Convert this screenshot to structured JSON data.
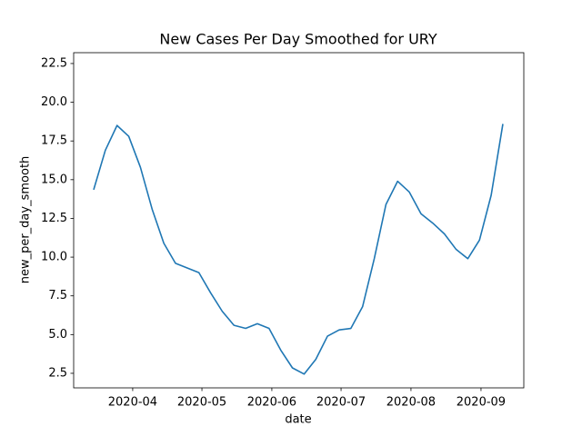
{
  "chart_data": {
    "type": "line",
    "title": "New Cases Per Day Smoothed for URY",
    "x_label": "date",
    "y_label": "new_per_day_smooth",
    "series": [
      {
        "name": "new_per_day_smooth",
        "color": "#1f77b4",
        "values": [
          14.35,
          16.9,
          18.5,
          17.8,
          15.8,
          13.1,
          10.9,
          9.6,
          9.3,
          9.0,
          7.7,
          6.5,
          5.6,
          5.4,
          5.7,
          5.4,
          4.0,
          2.85,
          2.45,
          3.4,
          4.9,
          5.3,
          5.4,
          6.8,
          9.9,
          13.4,
          14.9,
          14.2,
          12.8,
          12.2,
          11.5,
          10.5,
          9.9,
          11.1,
          14.0,
          18.6
        ]
      }
    ],
    "xlim": [
      -1.71,
      36.79
    ],
    "xticks": [
      {
        "value": 3.34,
        "label": "2020-04"
      },
      {
        "value": 9.26,
        "label": "2020-05"
      },
      {
        "value": 15.24,
        "label": "2020-06"
      },
      {
        "value": 21.16,
        "label": "2020-07"
      },
      {
        "value": 27.14,
        "label": "2020-08"
      },
      {
        "value": 33.13,
        "label": "2020-09"
      }
    ],
    "ylim": [
      1.56,
      23.2
    ],
    "yticks": [
      2.5,
      {
        "value": 5,
        "label": "5.0"
      },
      7.5,
      {
        "value": 10,
        "label": "10.0"
      },
      12.5,
      {
        "value": 15,
        "label": "15.0"
      },
      17.5,
      {
        "value": 20,
        "label": "20.0"
      },
      22.5
    ],
    "grid": false
  }
}
